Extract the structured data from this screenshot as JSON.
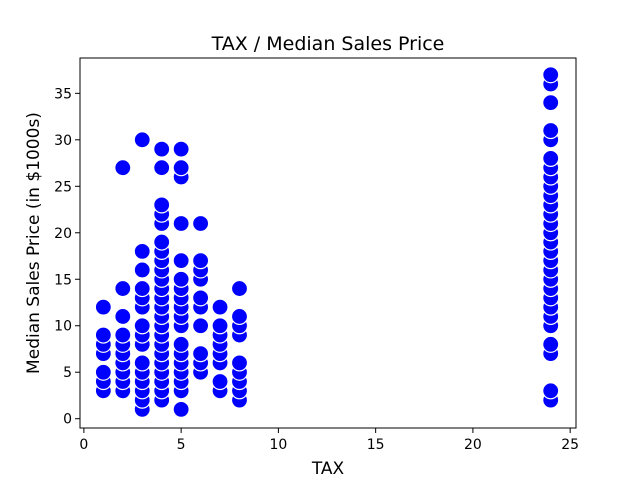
{
  "chart_data": {
    "type": "scatter",
    "title": "TAX / Median Sales Price",
    "xlabel": "TAX",
    "ylabel": "Median Sales Price (in $1000s)",
    "xlim": [
      -0.2,
      25.3
    ],
    "ylim": [
      -1,
      38.8
    ],
    "xticks": [
      0,
      5,
      10,
      15,
      20,
      25
    ],
    "yticks": [
      0,
      5,
      10,
      15,
      20,
      25,
      30,
      35
    ],
    "grid": false,
    "marker_color": "#0000ff",
    "marker_edge_color": "#ffffff",
    "points": [
      {
        "x": 1,
        "y": 3
      },
      {
        "x": 1,
        "y": 4
      },
      {
        "x": 1,
        "y": 5
      },
      {
        "x": 1,
        "y": 7
      },
      {
        "x": 1,
        "y": 8
      },
      {
        "x": 1,
        "y": 9
      },
      {
        "x": 1,
        "y": 12
      },
      {
        "x": 2,
        "y": 3
      },
      {
        "x": 2,
        "y": 4
      },
      {
        "x": 2,
        "y": 5
      },
      {
        "x": 2,
        "y": 6
      },
      {
        "x": 2,
        "y": 7
      },
      {
        "x": 2,
        "y": 8
      },
      {
        "x": 2,
        "y": 9
      },
      {
        "x": 2,
        "y": 11
      },
      {
        "x": 2,
        "y": 14
      },
      {
        "x": 2,
        "y": 27
      },
      {
        "x": 3,
        "y": 1
      },
      {
        "x": 3,
        "y": 2
      },
      {
        "x": 3,
        "y": 3
      },
      {
        "x": 3,
        "y": 4
      },
      {
        "x": 3,
        "y": 5
      },
      {
        "x": 3,
        "y": 6
      },
      {
        "x": 3,
        "y": 8
      },
      {
        "x": 3,
        "y": 9
      },
      {
        "x": 3,
        "y": 10
      },
      {
        "x": 3,
        "y": 12
      },
      {
        "x": 3,
        "y": 13
      },
      {
        "x": 3,
        "y": 14
      },
      {
        "x": 3,
        "y": 16
      },
      {
        "x": 3,
        "y": 18
      },
      {
        "x": 3,
        "y": 30
      },
      {
        "x": 4,
        "y": 2
      },
      {
        "x": 4,
        "y": 3
      },
      {
        "x": 4,
        "y": 4
      },
      {
        "x": 4,
        "y": 5
      },
      {
        "x": 4,
        "y": 6
      },
      {
        "x": 4,
        "y": 7
      },
      {
        "x": 4,
        "y": 8
      },
      {
        "x": 4,
        "y": 9
      },
      {
        "x": 4,
        "y": 10
      },
      {
        "x": 4,
        "y": 11
      },
      {
        "x": 4,
        "y": 12
      },
      {
        "x": 4,
        "y": 13
      },
      {
        "x": 4,
        "y": 14
      },
      {
        "x": 4,
        "y": 15
      },
      {
        "x": 4,
        "y": 16
      },
      {
        "x": 4,
        "y": 17
      },
      {
        "x": 4,
        "y": 18
      },
      {
        "x": 4,
        "y": 19
      },
      {
        "x": 4,
        "y": 21
      },
      {
        "x": 4,
        "y": 22
      },
      {
        "x": 4,
        "y": 23
      },
      {
        "x": 4,
        "y": 27
      },
      {
        "x": 4,
        "y": 29
      },
      {
        "x": 5,
        "y": 1
      },
      {
        "x": 5,
        "y": 3
      },
      {
        "x": 5,
        "y": 4
      },
      {
        "x": 5,
        "y": 5
      },
      {
        "x": 5,
        "y": 6
      },
      {
        "x": 5,
        "y": 7
      },
      {
        "x": 5,
        "y": 8
      },
      {
        "x": 5,
        "y": 10
      },
      {
        "x": 5,
        "y": 11
      },
      {
        "x": 5,
        "y": 12
      },
      {
        "x": 5,
        "y": 13
      },
      {
        "x": 5,
        "y": 14
      },
      {
        "x": 5,
        "y": 15
      },
      {
        "x": 5,
        "y": 17
      },
      {
        "x": 5,
        "y": 21
      },
      {
        "x": 5,
        "y": 26
      },
      {
        "x": 5,
        "y": 27
      },
      {
        "x": 5,
        "y": 29
      },
      {
        "x": 6,
        "y": 5
      },
      {
        "x": 6,
        "y": 6
      },
      {
        "x": 6,
        "y": 7
      },
      {
        "x": 6,
        "y": 10
      },
      {
        "x": 6,
        "y": 12
      },
      {
        "x": 6,
        "y": 13
      },
      {
        "x": 6,
        "y": 15
      },
      {
        "x": 6,
        "y": 16
      },
      {
        "x": 6,
        "y": 17
      },
      {
        "x": 6,
        "y": 21
      },
      {
        "x": 7,
        "y": 3
      },
      {
        "x": 7,
        "y": 4
      },
      {
        "x": 7,
        "y": 6
      },
      {
        "x": 7,
        "y": 7
      },
      {
        "x": 7,
        "y": 8
      },
      {
        "x": 7,
        "y": 9
      },
      {
        "x": 7,
        "y": 10
      },
      {
        "x": 7,
        "y": 12
      },
      {
        "x": 8,
        "y": 2
      },
      {
        "x": 8,
        "y": 3
      },
      {
        "x": 8,
        "y": 4
      },
      {
        "x": 8,
        "y": 5
      },
      {
        "x": 8,
        "y": 6
      },
      {
        "x": 8,
        "y": 9
      },
      {
        "x": 8,
        "y": 10
      },
      {
        "x": 8,
        "y": 11
      },
      {
        "x": 8,
        "y": 14
      },
      {
        "x": 24,
        "y": 2
      },
      {
        "x": 24,
        "y": 3
      },
      {
        "x": 24,
        "y": 7
      },
      {
        "x": 24,
        "y": 8
      },
      {
        "x": 24,
        "y": 10
      },
      {
        "x": 24,
        "y": 11
      },
      {
        "x": 24,
        "y": 12
      },
      {
        "x": 24,
        "y": 13
      },
      {
        "x": 24,
        "y": 14
      },
      {
        "x": 24,
        "y": 15
      },
      {
        "x": 24,
        "y": 16
      },
      {
        "x": 24,
        "y": 17
      },
      {
        "x": 24,
        "y": 18
      },
      {
        "x": 24,
        "y": 19
      },
      {
        "x": 24,
        "y": 20
      },
      {
        "x": 24,
        "y": 21
      },
      {
        "x": 24,
        "y": 22
      },
      {
        "x": 24,
        "y": 23
      },
      {
        "x": 24,
        "y": 24
      },
      {
        "x": 24,
        "y": 25
      },
      {
        "x": 24,
        "y": 26
      },
      {
        "x": 24,
        "y": 27
      },
      {
        "x": 24,
        "y": 28
      },
      {
        "x": 24,
        "y": 30
      },
      {
        "x": 24,
        "y": 31
      },
      {
        "x": 24,
        "y": 34
      },
      {
        "x": 24,
        "y": 36
      },
      {
        "x": 24,
        "y": 37
      }
    ]
  }
}
